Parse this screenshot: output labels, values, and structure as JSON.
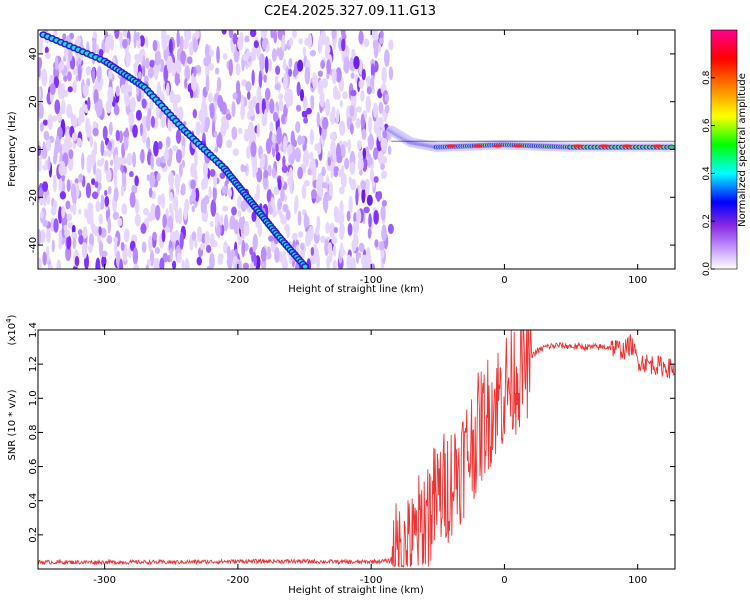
{
  "figure": {
    "title": "C2E4.2025.327.09.11.G13"
  },
  "chart_data": [
    {
      "type": "heatmap",
      "xlabel": "Height of straight line (km)",
      "ylabel": "Frequency (Hz)",
      "xlim": [
        -350,
        128
      ],
      "ylim": [
        -50,
        50
      ],
      "xticks": [
        -300,
        -200,
        -100,
        0,
        100
      ],
      "yticks": [
        -40,
        -20,
        0,
        20,
        40
      ],
      "grid": false,
      "description_traces": [
        {
          "name": "",
          "points": [
            [
              -346,
              48
            ],
            [
              -300,
              37
            ],
            [
              -270,
              26
            ],
            [
              -240,
              8
            ],
            [
              -210,
              -8
            ],
            [
              -190,
              -22
            ],
            [
              -170,
              -36
            ],
            [
              -148,
              -50
            ]
          ]
        },
        {
          "name": "",
          "points": [
            [
              -85,
              8
            ],
            [
              -70,
              3
            ],
            [
              -50,
              1
            ],
            [
              0,
              2
            ],
            [
              50,
              1
            ],
            [
              128,
              1
            ]
          ]
        }
      ],
      "colorbar": {
        "label": "Normalized spectral amplitude",
        "range": [
          0.0,
          1.0
        ],
        "ticks": [
          0.0,
          0.2,
          0.4,
          0.6,
          0.8
        ],
        "tick_labels": [
          "0.0",
          "0.2",
          "0.4",
          "0.6",
          "0.8"
        ],
        "colors": [
          "#ffffff",
          "#9b30ff",
          "#0000ff",
          "#00ffff",
          "#00ff00",
          "#ffff00",
          "#ff8000",
          "#ff0000",
          "#ff0090"
        ]
      }
    },
    {
      "type": "line",
      "xlabel": "Height of straight line (km)",
      "ylabel": "SNR (10 * v/v)",
      "y_multiplier_label": "(x10",
      "y_multiplier_exp": "4",
      "xlim": [
        -350,
        128
      ],
      "ylim": [
        0,
        1.4
      ],
      "xticks": [
        -300,
        -200,
        -100,
        0,
        100
      ],
      "yticks": [
        0.2,
        0.4,
        0.6,
        0.8,
        1.0,
        1.2,
        1.4
      ],
      "ytick_labels": [
        "0.2",
        "0.4",
        "0.6",
        "0.8",
        "1.0",
        "1.2",
        "1.4"
      ],
      "grid": false,
      "series": [
        {
          "name": "",
          "color": "#ee3333",
          "x": [
            -350,
            -300,
            -250,
            -200,
            -150,
            -110,
            -80,
            -70,
            -60,
            -50,
            -40,
            -30,
            -20,
            -10,
            0,
            10,
            20,
            30,
            40,
            60,
            80,
            90,
            95,
            100,
            110,
            128
          ],
          "y": [
            0.04,
            0.04,
            0.04,
            0.045,
            0.045,
            0.04,
            0.05,
            0.1,
            0.3,
            0.42,
            0.52,
            0.65,
            0.8,
            0.95,
            1.05,
            1.15,
            1.25,
            1.3,
            1.31,
            1.3,
            1.3,
            1.28,
            1.32,
            1.22,
            1.2,
            1.17
          ]
        }
      ]
    }
  ]
}
